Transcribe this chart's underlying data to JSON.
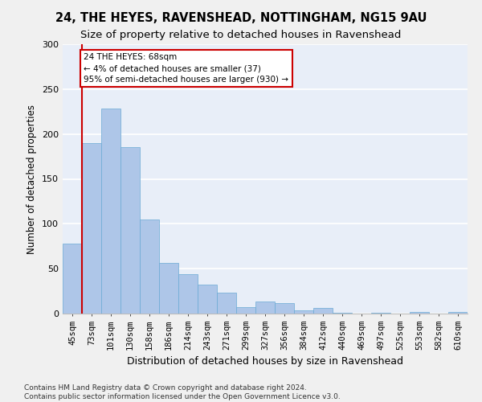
{
  "title1": "24, THE HEYES, RAVENSHEAD, NOTTINGHAM, NG15 9AU",
  "title2": "Size of property relative to detached houses in Ravenshead",
  "xlabel": "Distribution of detached houses by size in Ravenshead",
  "ylabel": "Number of detached properties",
  "categories": [
    "45sqm",
    "73sqm",
    "101sqm",
    "130sqm",
    "158sqm",
    "186sqm",
    "214sqm",
    "243sqm",
    "271sqm",
    "299sqm",
    "327sqm",
    "356sqm",
    "384sqm",
    "412sqm",
    "440sqm",
    "469sqm",
    "497sqm",
    "525sqm",
    "553sqm",
    "582sqm",
    "610sqm"
  ],
  "values": [
    78,
    190,
    228,
    185,
    105,
    56,
    44,
    32,
    23,
    7,
    13,
    12,
    4,
    6,
    1,
    0,
    1,
    0,
    2,
    0,
    2
  ],
  "bar_color": "#aec6e8",
  "bar_edge_color": "#6aaad4",
  "highlight_line_color": "#cc0000",
  "annotation_text": "24 THE HEYES: 68sqm\n← 4% of detached houses are smaller (37)\n95% of semi-detached houses are larger (930) →",
  "annotation_box_facecolor": "#ffffff",
  "annotation_box_edgecolor": "#cc0000",
  "ylim": [
    0,
    300
  ],
  "yticks": [
    0,
    50,
    100,
    150,
    200,
    250,
    300
  ],
  "plot_bg_color": "#e8eef8",
  "grid_color": "#ffffff",
  "fig_bg_color": "#f0f0f0",
  "footer_line1": "Contains HM Land Registry data © Crown copyright and database right 2024.",
  "footer_line2": "Contains public sector information licensed under the Open Government Licence v3.0.",
  "title1_fontsize": 10.5,
  "title2_fontsize": 9.5,
  "xlabel_fontsize": 9,
  "ylabel_fontsize": 8.5,
  "tick_fontsize": 7.5,
  "ytick_fontsize": 8,
  "footer_fontsize": 6.5,
  "annotation_fontsize": 7.5
}
